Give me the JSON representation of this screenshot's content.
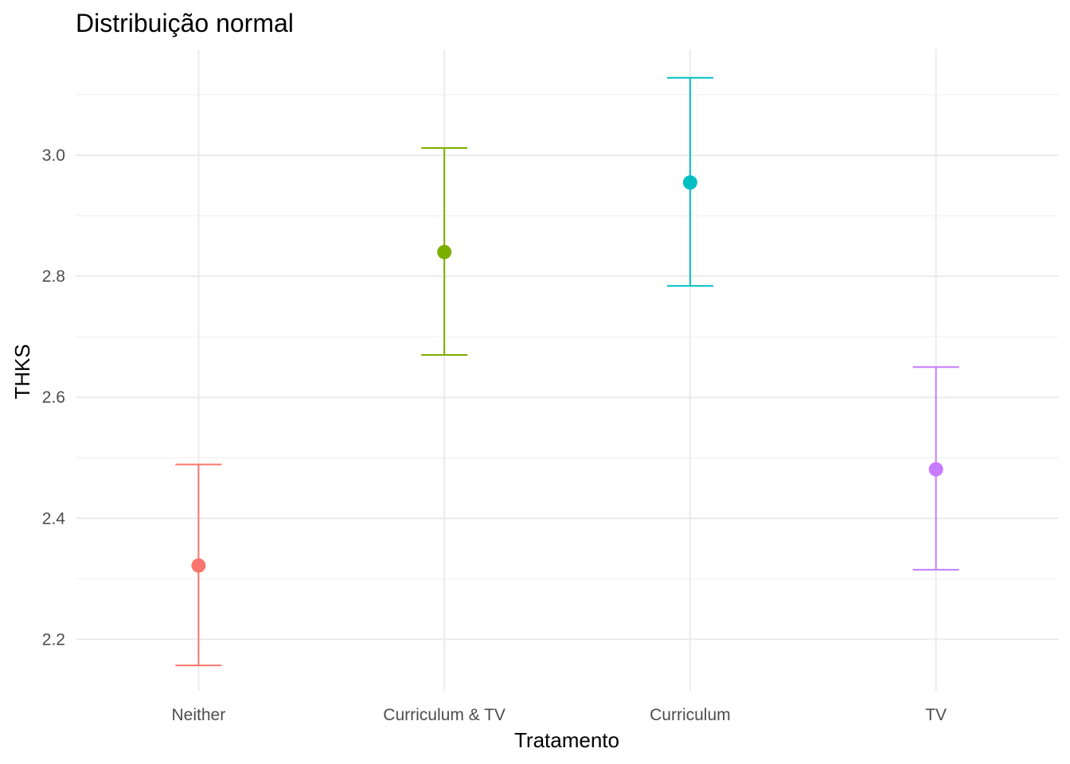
{
  "chart_data": {
    "type": "errorbar",
    "title": "Distribuição normal",
    "xlabel": "Tratamento",
    "ylabel": "THKS",
    "categories": [
      "Neither",
      "Curriculum & TV",
      "Curriculum",
      "TV"
    ],
    "mean": [
      2.322,
      2.84,
      2.955,
      2.481
    ],
    "lower": [
      2.157,
      2.67,
      2.784,
      2.315
    ],
    "upper": [
      2.489,
      3.012,
      3.128,
      2.65
    ],
    "colors": [
      "#F8766D",
      "#7CAE00",
      "#00BFC4",
      "#C77CFF"
    ],
    "ylim": [
      2.115,
      3.175
    ],
    "yticks": [
      2.2,
      2.4,
      2.6,
      2.8,
      3.0
    ],
    "ytick_labels": [
      "2.2",
      "2.4",
      "2.6",
      "2.8",
      "3.0"
    ],
    "grid": true,
    "legend": "none"
  }
}
